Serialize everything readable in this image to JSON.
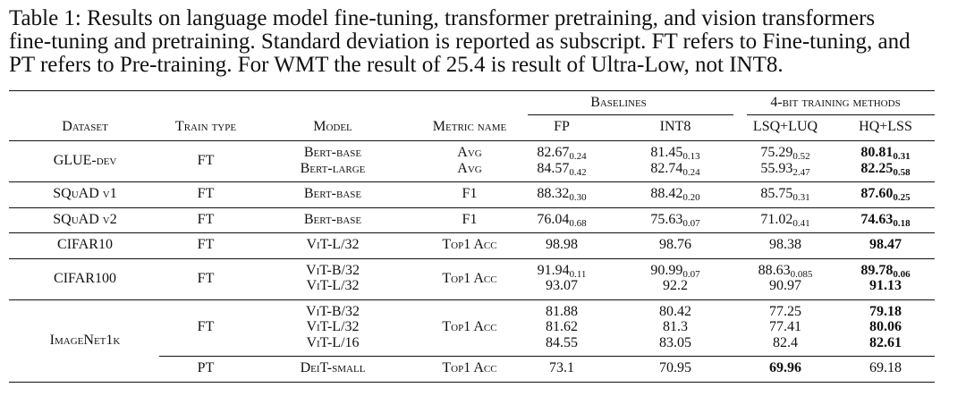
{
  "caption": [
    "Table 1: Results on language model fine-tuning, transformer pretraining, and vision transformers",
    "fine-tuning and pretraining. Standard deviation is reported as subscript. FT refers to Fine-tuning, and",
    "PT refers to Pre-training. For WMT the result of 25.4 is result of Ultra-Low, not INT8."
  ],
  "header": {
    "groups": [
      "Baselines",
      "4-bit training methods"
    ],
    "columns": [
      "Dataset",
      "Train type",
      "Model",
      "Metric name",
      "FP",
      "INT8",
      "LSQ+LUQ",
      "HQ+LSS"
    ]
  },
  "rows": [
    {
      "dataset": "GLUE-dev",
      "sections": [
        {
          "train_type": "FT",
          "lines": [
            {
              "model": "Bert-base",
              "metric": "Avg",
              "results": [
                {
                  "value": "82.67",
                  "std": "0.24"
                },
                {
                  "value": "81.45",
                  "std": "0.13"
                },
                {
                  "value": "75.29",
                  "std": "0.52"
                },
                {
                  "value": "80.81",
                  "std": "0.31",
                  "bold": true
                }
              ]
            },
            {
              "model": "Bert-large",
              "metric": "Avg",
              "results": [
                {
                  "value": "84.57",
                  "std": "0.42"
                },
                {
                  "value": "82.74",
                  "std": "0.24"
                },
                {
                  "value": "55.93",
                  "std": "2.47"
                },
                {
                  "value": "82.25",
                  "std": "0.58",
                  "bold": true
                }
              ]
            }
          ]
        }
      ]
    },
    {
      "dataset": "SQuAD v1",
      "sections": [
        {
          "train_type": "FT",
          "metric": "F1",
          "lines": [
            {
              "model": "Bert-base",
              "results": [
                {
                  "value": "88.32",
                  "std": "0.30"
                },
                {
                  "value": "88.42",
                  "std": "0.20"
                },
                {
                  "value": "85.75",
                  "std": "0.31"
                },
                {
                  "value": "87.60",
                  "std": "0.25",
                  "bold": true
                }
              ]
            }
          ]
        }
      ]
    },
    {
      "dataset": "SQuAD v2",
      "sections": [
        {
          "train_type": "FT",
          "metric": "F1",
          "lines": [
            {
              "model": "Bert-base",
              "results": [
                {
                  "value": "76.04",
                  "std": "0.68"
                },
                {
                  "value": "75.63",
                  "std": "0.07"
                },
                {
                  "value": "71.02",
                  "std": "0.41"
                },
                {
                  "value": "74.63",
                  "std": "0.18",
                  "bold": true
                }
              ]
            }
          ]
        }
      ]
    },
    {
      "dataset": "CIFAR10",
      "sections": [
        {
          "train_type": "FT",
          "metric": "Top1 Acc",
          "lines": [
            {
              "model": "ViT-L/32",
              "results": [
                {
                  "value": "98.98"
                },
                {
                  "value": "98.76"
                },
                {
                  "value": "98.38"
                },
                {
                  "value": "98.47",
                  "bold": true
                }
              ]
            }
          ]
        }
      ]
    },
    {
      "dataset": "CIFAR100",
      "sections": [
        {
          "train_type": "FT",
          "metric": "Top1 Acc",
          "lines": [
            {
              "model": "ViT-B/32",
              "results": [
                {
                  "value": "91.94",
                  "std": "0.11"
                },
                {
                  "value": "90.99",
                  "std": "0.07"
                },
                {
                  "value": "88.63",
                  "std": "0.085"
                },
                {
                  "value": "89.78",
                  "std": "0.06",
                  "bold": true
                }
              ]
            },
            {
              "model": "ViT-L/32",
              "results": [
                {
                  "value": "93.07"
                },
                {
                  "value": "92.2"
                },
                {
                  "value": "90.97"
                },
                {
                  "value": "91.13",
                  "bold": true
                }
              ]
            }
          ]
        }
      ]
    },
    {
      "dataset": "ImageNet1k",
      "sections": [
        {
          "train_type": "FT",
          "metric": "Top1 Acc",
          "lines": [
            {
              "model": "ViT-B/32",
              "results": [
                {
                  "value": "81.88"
                },
                {
                  "value": "80.42"
                },
                {
                  "value": "77.25"
                },
                {
                  "value": "79.18",
                  "bold": true
                }
              ]
            },
            {
              "model": "ViT-L/32",
              "results": [
                {
                  "value": "81.62"
                },
                {
                  "value": "81.3"
                },
                {
                  "value": "77.41"
                },
                {
                  "value": "80.06",
                  "bold": true
                }
              ]
            },
            {
              "model": "ViT-L/16",
              "results": [
                {
                  "value": "84.55"
                },
                {
                  "value": "83.05"
                },
                {
                  "value": "82.4"
                },
                {
                  "value": "82.61",
                  "bold": true
                }
              ]
            }
          ]
        },
        {
          "train_type": "PT",
          "metric": "Top1 Acc",
          "lines": [
            {
              "model": "DeiT-small",
              "results": [
                {
                  "value": "73.1"
                },
                {
                  "value": "70.95"
                },
                {
                  "value": "69.96",
                  "bold": true
                },
                {
                  "value": "69.18"
                }
              ]
            }
          ]
        }
      ]
    }
  ]
}
